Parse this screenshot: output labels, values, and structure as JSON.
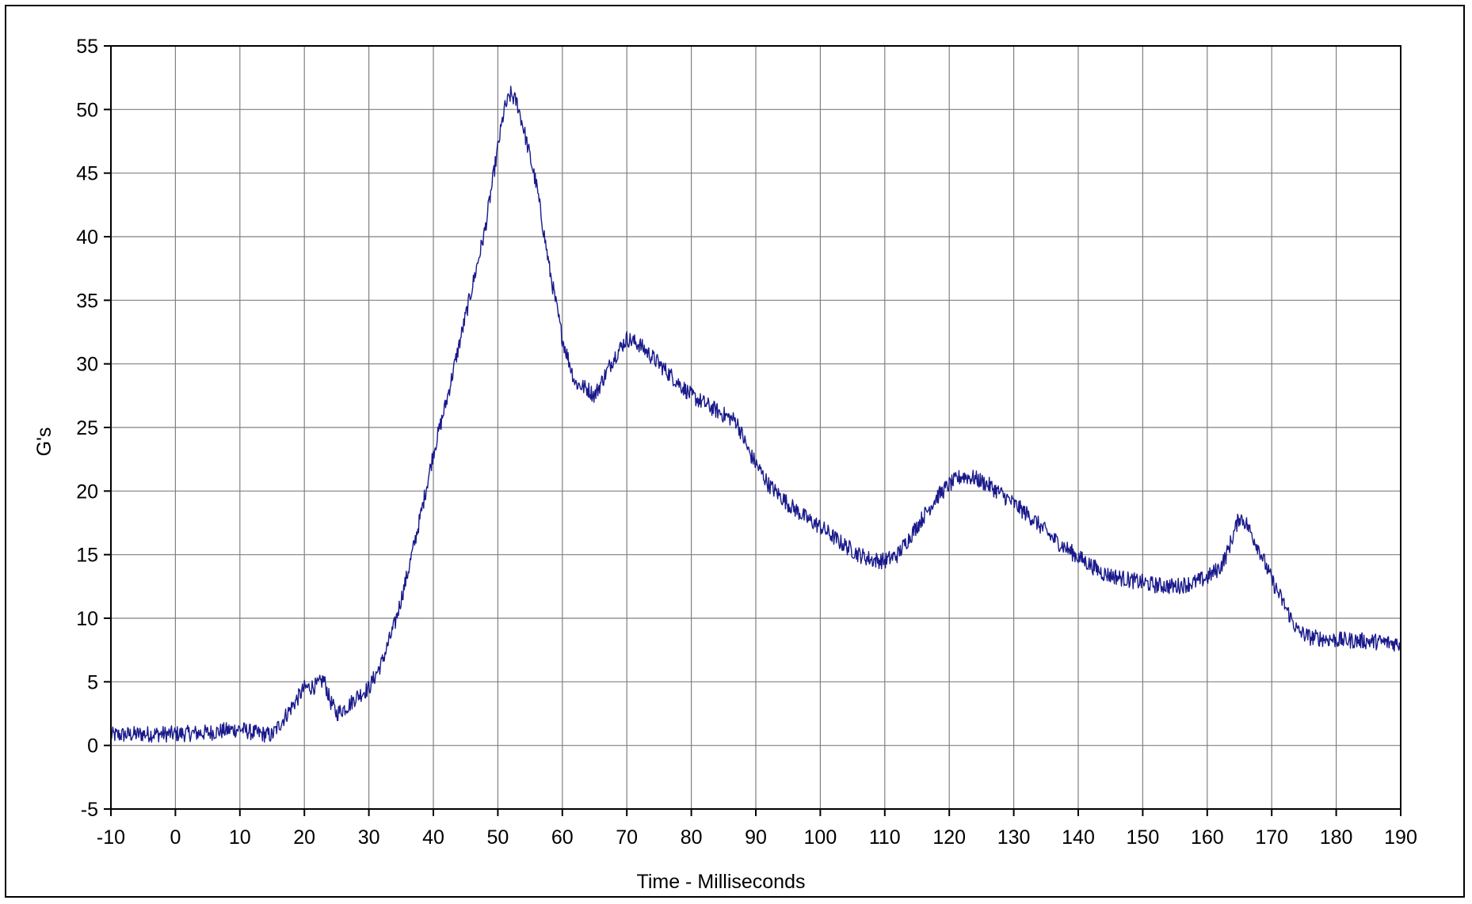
{
  "chart_data": {
    "type": "line",
    "title": "",
    "xlabel": "Time - Milliseconds",
    "ylabel": "G's",
    "xlim": [
      -10,
      190
    ],
    "ylim": [
      -5,
      55
    ],
    "x_ticks": [
      -10,
      0,
      10,
      20,
      30,
      40,
      50,
      60,
      70,
      80,
      90,
      100,
      110,
      120,
      130,
      140,
      150,
      160,
      170,
      180,
      190
    ],
    "y_ticks": [
      -5,
      0,
      5,
      10,
      15,
      20,
      25,
      30,
      35,
      40,
      45,
      50,
      55
    ],
    "grid": true,
    "legend": "none",
    "colors": {
      "line": "#1a1a8c",
      "grid": "#808080",
      "axis": "#000000",
      "plot_background": "#ffffff"
    },
    "series": [
      {
        "x": [
          -10,
          -5,
          0,
          5,
          10,
          12,
          15,
          18,
          20,
          22,
          23,
          24,
          25,
          27,
          28,
          30,
          32,
          34,
          36,
          38,
          40,
          42,
          44,
          46,
          48,
          50,
          51,
          52,
          53,
          54,
          56,
          58,
          60,
          62,
          64,
          65,
          66,
          68,
          70,
          72,
          74,
          76,
          80,
          85,
          87,
          89,
          92,
          95,
          98,
          100,
          103,
          106,
          108,
          110,
          112,
          114,
          116,
          118,
          120,
          122,
          124,
          126,
          128,
          130,
          133,
          136,
          140,
          144,
          148,
          150,
          152,
          155,
          158,
          160,
          162,
          163,
          164,
          165,
          166,
          168,
          170,
          172,
          174,
          176,
          180,
          185,
          190
        ],
        "y": [
          0.8,
          0.9,
          0.9,
          1.0,
          1.3,
          1.0,
          0.8,
          3.0,
          4.5,
          4.7,
          5.2,
          3.5,
          2.5,
          3.2,
          3.8,
          4.5,
          6.5,
          9.5,
          13.5,
          18.0,
          23.0,
          27.0,
          31.5,
          36.0,
          40.5,
          47.0,
          50.0,
          51.2,
          50.5,
          48.5,
          44.0,
          37.5,
          32.0,
          28.5,
          28.0,
          27.5,
          28.5,
          30.5,
          32.0,
          31.5,
          30.5,
          29.5,
          27.5,
          26.0,
          25.5,
          23.0,
          20.5,
          19.0,
          17.8,
          17.2,
          16.0,
          15.0,
          14.6,
          14.5,
          15.0,
          16.5,
          18.0,
          19.5,
          20.5,
          21.2,
          21.0,
          20.5,
          19.8,
          19.0,
          17.8,
          16.3,
          14.8,
          13.5,
          13.0,
          12.8,
          12.6,
          12.5,
          12.8,
          13.2,
          14.0,
          15.0,
          16.5,
          18.0,
          17.5,
          15.5,
          13.0,
          11.0,
          9.0,
          8.5,
          8.3,
          8.2,
          8.0
        ]
      }
    ]
  }
}
